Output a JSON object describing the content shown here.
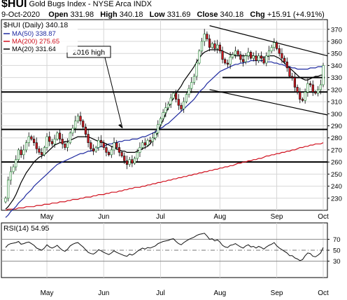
{
  "header": {
    "symbol": "$HUI",
    "name": "Gold Bugs Index - NYSE Arca INDX",
    "date": "9-Oct-2020",
    "open_label": "Open",
    "open": "331.98",
    "high_label": "High",
    "high": "340.18",
    "low_label": "Low",
    "low": "331.69",
    "close_label": "Close",
    "close": "340.18",
    "chg_label": "Chg",
    "chg": "+15.91 (+4.91%)"
  },
  "chart_data": [
    {
      "type": "candlestick",
      "title": "$HUI (Daily) 340.18",
      "legend": [
        {
          "label": "MA(50) 338.87",
          "color": "#1f2aa0"
        },
        {
          "label": "MA(200) 275.65",
          "color": "#d0101e"
        },
        {
          "label": "MA(20) 331.64",
          "color": "#000000"
        }
      ],
      "annotation": "2016 high",
      "ylim": [
        220,
        378
      ],
      "y_ticks": [
        230,
        240,
        250,
        260,
        270,
        280,
        290,
        300,
        310,
        320,
        330,
        340,
        350,
        360,
        370
      ],
      "x_ticks": [
        "May",
        "Jun",
        "Jul",
        "Aug",
        "Sep",
        "Oct"
      ],
      "horizontal_levels": [
        260,
        287,
        318,
        330
      ],
      "channel": {
        "upper": [
          [
            0.0,
            373
          ],
          [
            1.0,
            348
          ]
        ],
        "lower": [
          [
            0.0,
            320
          ],
          [
            1.0,
            299
          ]
        ]
      },
      "closes": [
        230,
        245,
        252,
        256,
        262,
        270,
        266,
        270,
        276,
        281,
        279,
        276,
        271,
        268,
        266,
        272,
        281,
        277,
        275,
        279,
        284,
        279,
        275,
        272,
        276,
        284,
        288,
        294,
        298,
        294,
        289,
        283,
        276,
        271,
        269,
        272,
        278,
        276,
        272,
        268,
        266,
        270,
        276,
        272,
        268,
        265,
        261,
        258,
        262,
        259,
        263,
        268,
        272,
        276,
        274,
        278,
        277,
        280,
        284,
        291,
        296,
        301,
        305,
        308,
        313,
        317,
        312,
        307,
        304,
        310,
        316,
        321,
        326,
        331,
        342,
        352,
        360,
        366,
        362,
        355,
        358,
        354,
        357,
        352,
        345,
        342,
        341,
        347,
        349,
        352,
        349,
        345,
        343,
        348,
        351,
        346,
        348,
        344,
        348,
        346,
        342,
        348,
        352,
        355,
        359,
        354,
        350,
        346,
        343,
        338,
        331,
        330,
        322,
        318,
        312,
        311,
        318,
        325,
        324,
        318,
        317,
        320,
        324,
        340
      ],
      "ma20": [
        221,
        223,
        226,
        229,
        233,
        238,
        243,
        247,
        251,
        254,
        257,
        260,
        262,
        264,
        265,
        266,
        268,
        270,
        272,
        274,
        275,
        276,
        276,
        277,
        277,
        278,
        279,
        280,
        281,
        281,
        281,
        281,
        281,
        280,
        279,
        278,
        277,
        277,
        276,
        275,
        274,
        273,
        272,
        271,
        270,
        269,
        269,
        268,
        268,
        268,
        268,
        269,
        270,
        271,
        272,
        273,
        275,
        278,
        281,
        285,
        290,
        295,
        300,
        305,
        309,
        313,
        317,
        320,
        323,
        327,
        330,
        333,
        336,
        339,
        343,
        346,
        349,
        351,
        352,
        353,
        353,
        353,
        353,
        353,
        352,
        351,
        350,
        349,
        349,
        348,
        348,
        348,
        348,
        348,
        348,
        348,
        348,
        347,
        347,
        347,
        347,
        347,
        348,
        348,
        348,
        347,
        346,
        344,
        342,
        340,
        338,
        336,
        334,
        332,
        330,
        329,
        328,
        328,
        329,
        330,
        331,
        331,
        332,
        332
      ],
      "ma50": [
        214,
        216,
        219,
        221,
        223,
        226,
        228,
        230,
        233,
        235,
        237,
        240,
        242,
        244,
        246,
        248,
        250,
        252,
        254,
        256,
        258,
        259,
        260,
        261,
        262,
        263,
        264,
        265,
        266,
        267,
        267,
        268,
        269,
        269,
        270,
        271,
        272,
        273,
        273,
        274,
        275,
        275,
        276,
        276,
        277,
        277,
        278,
        278,
        278,
        279,
        279,
        279,
        280,
        281,
        281,
        282,
        283,
        284,
        285,
        287,
        288,
        289,
        291,
        292,
        294,
        296,
        298,
        300,
        302,
        304,
        306,
        308,
        310,
        312,
        315,
        318,
        320,
        322,
        325,
        327,
        329,
        331,
        333,
        335,
        336,
        337,
        338,
        339,
        340,
        341,
        341,
        342,
        342,
        343,
        343,
        344,
        344,
        344,
        344,
        344,
        344,
        343,
        343,
        343,
        342,
        342,
        341,
        341,
        340,
        339,
        339,
        338,
        338,
        337,
        337,
        337,
        337,
        337,
        338,
        338,
        338,
        339,
        339,
        339
      ],
      "ma200": [
        220,
        221,
        221,
        221,
        221,
        222,
        222,
        222,
        223,
        223,
        223,
        223,
        224,
        224,
        224,
        225,
        225,
        225,
        226,
        226,
        226,
        227,
        227,
        227,
        228,
        228,
        229,
        229,
        229,
        230,
        230,
        231,
        231,
        231,
        232,
        232,
        233,
        233,
        233,
        234,
        234,
        235,
        235,
        235,
        236,
        236,
        237,
        237,
        238,
        238,
        239,
        239,
        239,
        240,
        240,
        241,
        241,
        242,
        242,
        243,
        243,
        244,
        244,
        245,
        245,
        246,
        246,
        247,
        247,
        248,
        248,
        249,
        249,
        250,
        250,
        251,
        251,
        252,
        252,
        253,
        253,
        254,
        254,
        255,
        255,
        256,
        256,
        257,
        257,
        258,
        259,
        259,
        260,
        260,
        261,
        261,
        262,
        262,
        263,
        263,
        264,
        265,
        265,
        266,
        266,
        267,
        267,
        268,
        268,
        269,
        269,
        270,
        270,
        271,
        272,
        272,
        273,
        273,
        274,
        274,
        275,
        275,
        275,
        276
      ]
    },
    {
      "type": "line",
      "title": "RSI(14) 54.95",
      "ylim": [
        0,
        100
      ],
      "y_ticks": [
        30,
        50,
        70
      ],
      "x_ticks": [
        "May",
        "Jun",
        "Jul",
        "Aug",
        "Sep",
        "Oct"
      ],
      "values": [
        55,
        60,
        62,
        63,
        64,
        66,
        61,
        62,
        64,
        65,
        62,
        59,
        54,
        52,
        50,
        54,
        60,
        56,
        54,
        56,
        59,
        54,
        50,
        48,
        52,
        58,
        61,
        63,
        64,
        60,
        56,
        51,
        46,
        44,
        43,
        46,
        51,
        49,
        46,
        44,
        42,
        45,
        49,
        46,
        44,
        42,
        40,
        39,
        43,
        41,
        44,
        48,
        51,
        54,
        52,
        55,
        54,
        56,
        58,
        62,
        64,
        66,
        67,
        68,
        70,
        71,
        66,
        62,
        60,
        64,
        67,
        70,
        72,
        74,
        77,
        79,
        80,
        81,
        76,
        70,
        71,
        67,
        69,
        65,
        59,
        56,
        55,
        59,
        60,
        62,
        59,
        56,
        54,
        58,
        60,
        56,
        57,
        54,
        57,
        55,
        52,
        56,
        59,
        61,
        64,
        58,
        54,
        51,
        48,
        45,
        40,
        40,
        36,
        34,
        31,
        33,
        40,
        45,
        44,
        39,
        38,
        41,
        45,
        55
      ]
    }
  ]
}
